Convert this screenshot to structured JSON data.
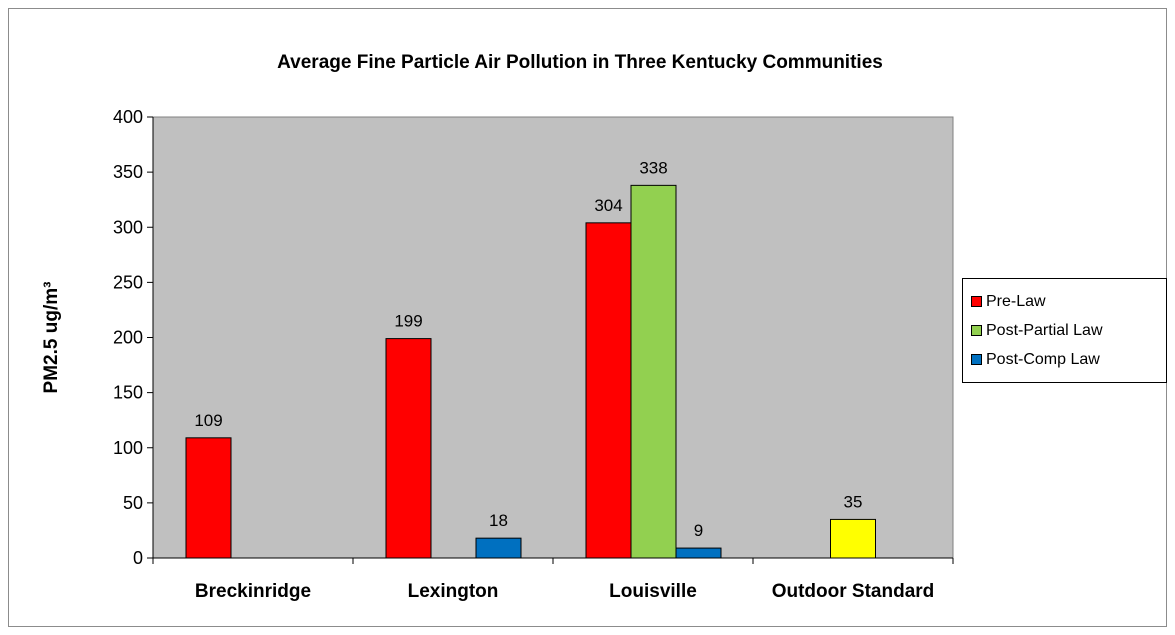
{
  "chart_data": {
    "type": "bar",
    "title": "Average Fine Particle Air Pollution in Three Kentucky Communities",
    "ylabel": "PM2.5 ug/m³",
    "xlabel": "",
    "ylim": [
      0,
      400
    ],
    "yticks": [
      "0",
      "50",
      "100",
      "150",
      "200",
      "250",
      "300",
      "350",
      "400"
    ],
    "categories": [
      "Breckinridge",
      "Lexington",
      "Louisville",
      "Outdoor Standard"
    ],
    "series": [
      {
        "name": "Pre-Law",
        "color": "#ff0000",
        "values": [
          109,
          199,
          304,
          null
        ]
      },
      {
        "name": "Post-Partial Law",
        "color": "#92d050",
        "values": [
          null,
          null,
          338,
          null
        ]
      },
      {
        "name": "Post-Comp Law",
        "color": "#0070c0",
        "values": [
          null,
          18,
          9,
          null
        ]
      }
    ],
    "extra_bars": [
      {
        "category": "Outdoor Standard",
        "value": 35,
        "color": "#ffff00"
      }
    ],
    "plot_background": "#c0c0c0",
    "grid": false,
    "legend_position": "right"
  }
}
